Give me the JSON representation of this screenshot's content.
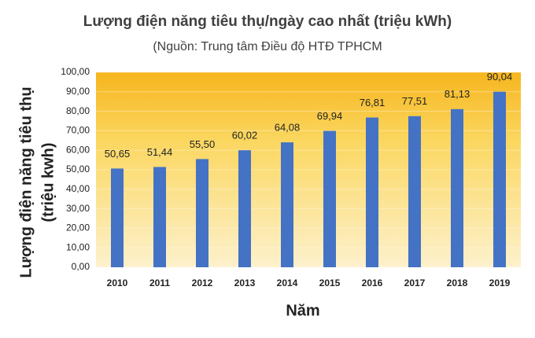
{
  "chart_data": {
    "type": "bar",
    "title": "Lượng điện năng tiêu thụ/ngày cao nhất (triệu kWh)",
    "subtitle": "(Nguồn: Trung tâm Điều độ HTĐ TPHCM",
    "y_label": [
      "Lượng điện năng tiêu thụ",
      "(triệu kwh)"
    ],
    "x_label": "Năm",
    "categories": [
      "2010",
      "2011",
      "2012",
      "2013",
      "2014",
      "2015",
      "2016",
      "2017",
      "2018",
      "2019"
    ],
    "values": [
      50.65,
      51.44,
      55.5,
      60.02,
      64.08,
      69.94,
      76.81,
      77.51,
      81.13,
      90.04
    ],
    "value_labels": [
      "50,65",
      "51,44",
      "55,50",
      "60,02",
      "64,08",
      "69,94",
      "76,81",
      "77,51",
      "81,13",
      "90,04"
    ],
    "color": "#4472c4",
    "ylim": [
      0,
      100
    ],
    "yticks": [
      {
        "value": 0,
        "label": "0,00"
      },
      {
        "value": 10,
        "label": "10,00"
      },
      {
        "value": 20,
        "label": "20,00"
      },
      {
        "value": 30,
        "label": "30,00"
      },
      {
        "value": 40,
        "label": "40,00"
      },
      {
        "value": 50,
        "label": "50,00"
      },
      {
        "value": 60,
        "label": "60,00"
      },
      {
        "value": 70,
        "label": "70,00"
      },
      {
        "value": 80,
        "label": "80,00"
      },
      {
        "value": 90,
        "label": "90,00"
      },
      {
        "value": 100,
        "label": "100,00"
      }
    ],
    "grid": true
  }
}
